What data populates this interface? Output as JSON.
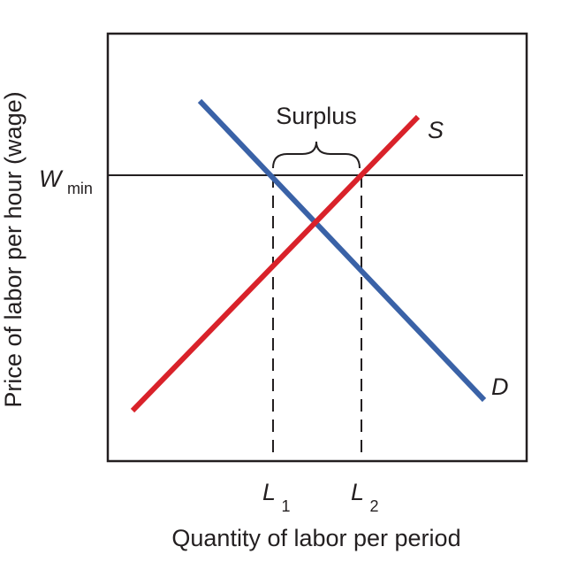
{
  "diagram": {
    "y_axis_label": "Price of labor per hour (wage)",
    "x_axis_label": "Quantity of labor per period",
    "wage_floor_label": {
      "main": "W",
      "sub": "min"
    },
    "quantity_labels": [
      {
        "main": "L",
        "sub": "1"
      },
      {
        "main": "L",
        "sub": "2"
      }
    ],
    "surplus_label": "Surplus",
    "supply_label": "S",
    "demand_label": "D"
  },
  "colors": {
    "supply": "#d9222a",
    "demand": "#3a62a7",
    "axes": "#231f20",
    "text": "#231f20"
  }
}
